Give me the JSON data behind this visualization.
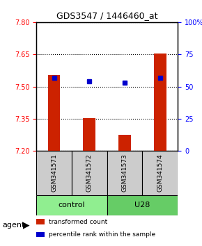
{
  "title": "GDS3547 / 1446460_at",
  "samples": [
    "GSM341571",
    "GSM341572",
    "GSM341573",
    "GSM341574"
  ],
  "bar_values": [
    7.555,
    7.352,
    7.275,
    7.655
  ],
  "percentile_values": [
    57,
    54,
    53,
    57
  ],
  "ylim_left": [
    7.2,
    7.8
  ],
  "ylim_right": [
    0,
    100
  ],
  "yticks_left": [
    7.2,
    7.35,
    7.5,
    7.65,
    7.8
  ],
  "yticks_right": [
    0,
    25,
    50,
    75,
    100
  ],
  "ytick_labels_right": [
    "0",
    "25",
    "50",
    "75",
    "100%"
  ],
  "bar_color": "#cc2200",
  "dot_color": "#0000cc",
  "bar_bottom": 7.2,
  "groups": [
    {
      "label": "control",
      "samples": [
        0,
        1
      ],
      "color": "#90ee90"
    },
    {
      "label": "U28",
      "samples": [
        2,
        3
      ],
      "color": "#66cc66"
    }
  ],
  "agent_label": "agent",
  "legend_items": [
    {
      "color": "#cc2200",
      "label": "transformed count"
    },
    {
      "color": "#0000cc",
      "label": "percentile rank within the sample"
    }
  ],
  "grid_color": "#000000",
  "background_color": "#ffffff",
  "sample_box_color": "#cccccc"
}
